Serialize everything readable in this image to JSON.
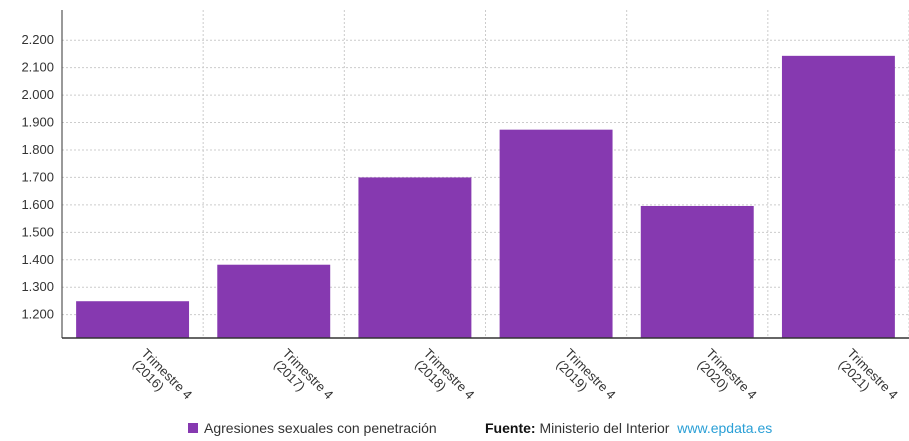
{
  "chart_data": {
    "type": "bar",
    "categories": [
      "Trimestre 4 (2016)",
      "Trimestre 4 (2017)",
      "Trimestre 4 (2018)",
      "Trimestre 4 (2019)",
      "Trimestre 4 (2020)",
      "Trimestre 4 (2021)"
    ],
    "category_lines": [
      [
        "Trimestre 4",
        "(2016)"
      ],
      [
        "Trimestre 4",
        "(2017)"
      ],
      [
        "Trimestre 4",
        "(2018)"
      ],
      [
        "Trimestre 4",
        "(2019)"
      ],
      [
        "Trimestre 4",
        "(2020)"
      ],
      [
        "Trimestre 4",
        "(2021)"
      ]
    ],
    "series": [
      {
        "name": "Agresiones sexuales con penetración",
        "values": [
          1249,
          1382,
          1700,
          1874,
          1596,
          2143
        ],
        "color": "#8639b0"
      }
    ],
    "yticks": [
      1200,
      1300,
      1400,
      1500,
      1600,
      1700,
      1800,
      1900,
      2000,
      2100,
      2200
    ],
    "ytick_labels": [
      "1.200",
      "1.300",
      "1.400",
      "1.500",
      "1.600",
      "1.700",
      "1.800",
      "1.900",
      "2.000",
      "2.100",
      "2.200"
    ],
    "ylim": [
      1115,
      2310
    ],
    "grid": true,
    "title": "",
    "xlabel": "",
    "ylabel": "",
    "legend_position": "bottom"
  },
  "footer": {
    "legend_label": "Agresiones sexuales con penetración",
    "source_label": "Fuente:",
    "source_text": "Ministerio del Interior",
    "source_link": "www.epdata.es"
  },
  "colors": {
    "bar": "#8639b0",
    "grid": "#cccccc",
    "axis": "#333333",
    "link": "#2a9fd6"
  }
}
